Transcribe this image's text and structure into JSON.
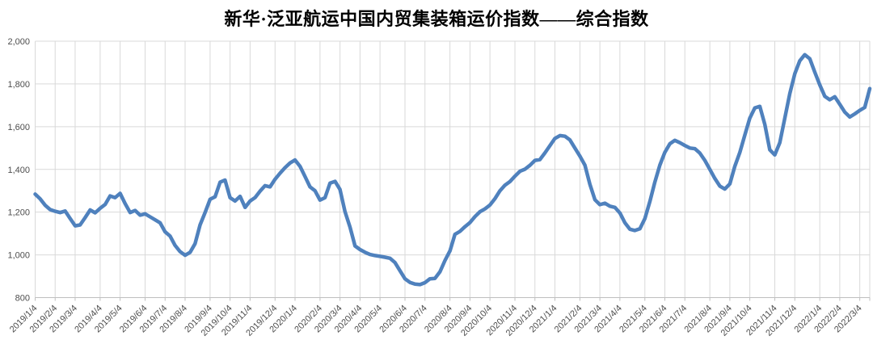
{
  "title": "新华·泛亚航运中国内贸集装箱运价指数——综合指数",
  "chart_data": {
    "type": "line",
    "title": "新华·泛亚航运中国内贸集装箱运价指数——综合指数",
    "xlabel": "",
    "ylabel": "",
    "ylim": [
      800,
      2000
    ],
    "y_ticks": [
      800,
      1000,
      1200,
      1400,
      1600,
      1800,
      2000
    ],
    "y_tick_labels": [
      "800",
      "1,000",
      "1,200",
      "1,400",
      "1,600",
      "1,800",
      "2,000"
    ],
    "x_unit": "week",
    "grid": "both",
    "legend_position": "none",
    "x_tick_labels": [
      "2019/1/4",
      "2019/2/4",
      "2019/3/4",
      "2019/4/4",
      "2019/5/4",
      "2019/6/4",
      "2019/7/4",
      "2019/8/4",
      "2019/9/4",
      "2019/10/4",
      "2019/11/4",
      "2019/12/4",
      "2020/1/4",
      "2020/2/4",
      "2020/3/4",
      "2020/4/4",
      "2020/5/4",
      "2020/6/4",
      "2020/7/4",
      "2020/8/4",
      "2020/9/4",
      "2020/10/4",
      "2020/11/4",
      "2020/12/4",
      "2021/1/4",
      "2021/2/4",
      "2021/3/4",
      "2021/4/4",
      "2021/5/4",
      "2021/6/4",
      "2021/7/4",
      "2021/8/4",
      "2021/9/4",
      "2021/10/4",
      "2021/11/4",
      "2021/12/4",
      "2022/1/4",
      "2022/2/4",
      "2022/3/4"
    ],
    "x_tick_indices": [
      0,
      4,
      8,
      13,
      17,
      22,
      26,
      30,
      35,
      39,
      43,
      48,
      52,
      57,
      61,
      65,
      69,
      74,
      78,
      83,
      87,
      91,
      96,
      100,
      104,
      109,
      113,
      117,
      122,
      126,
      130,
      135,
      139,
      143,
      148,
      152,
      157,
      161,
      165
    ],
    "series": [
      {
        "name": "综合指数",
        "values": [
          1284,
          1262,
          1232,
          1212,
          1204,
          1198,
          1205,
          1170,
          1136,
          1140,
          1174,
          1210,
          1197,
          1218,
          1236,
          1276,
          1268,
          1288,
          1240,
          1198,
          1208,
          1186,
          1192,
          1178,
          1164,
          1150,
          1108,
          1088,
          1044,
          1015,
          998,
          1012,
          1052,
          1140,
          1198,
          1260,
          1272,
          1340,
          1350,
          1268,
          1252,
          1274,
          1222,
          1252,
          1268,
          1298,
          1324,
          1318,
          1354,
          1382,
          1408,
          1430,
          1444,
          1414,
          1366,
          1318,
          1300,
          1256,
          1268,
          1336,
          1344,
          1306,
          1202,
          1130,
          1042,
          1025,
          1012,
          1002,
          997,
          993,
          989,
          984,
          964,
          926,
          888,
          871,
          863,
          861,
          870,
          888,
          890,
          921,
          974,
          1019,
          1096,
          1110,
          1132,
          1151,
          1179,
          1202,
          1215,
          1233,
          1263,
          1300,
          1326,
          1343,
          1368,
          1391,
          1401,
          1419,
          1442,
          1446,
          1477,
          1511,
          1545,
          1558,
          1555,
          1538,
          1500,
          1462,
          1420,
          1330,
          1258,
          1235,
          1242,
          1228,
          1222,
          1196,
          1150,
          1120,
          1114,
          1122,
          1170,
          1250,
          1340,
          1420,
          1480,
          1520,
          1536,
          1525,
          1512,
          1500,
          1497,
          1476,
          1442,
          1400,
          1358,
          1322,
          1308,
          1332,
          1415,
          1480,
          1560,
          1640,
          1688,
          1695,
          1610,
          1492,
          1468,
          1525,
          1640,
          1755,
          1848,
          1908,
          1937,
          1918,
          1855,
          1795,
          1742,
          1726,
          1740,
          1705,
          1668,
          1645,
          1660,
          1676,
          1690,
          1778
        ]
      }
    ],
    "colors": {
      "line": "#4f81bd",
      "grid": "#d9d9d9",
      "axis": "#bfbfbf",
      "tick_label": "#4d4d4d",
      "title": "#000000",
      "background": "#ffffff"
    }
  }
}
